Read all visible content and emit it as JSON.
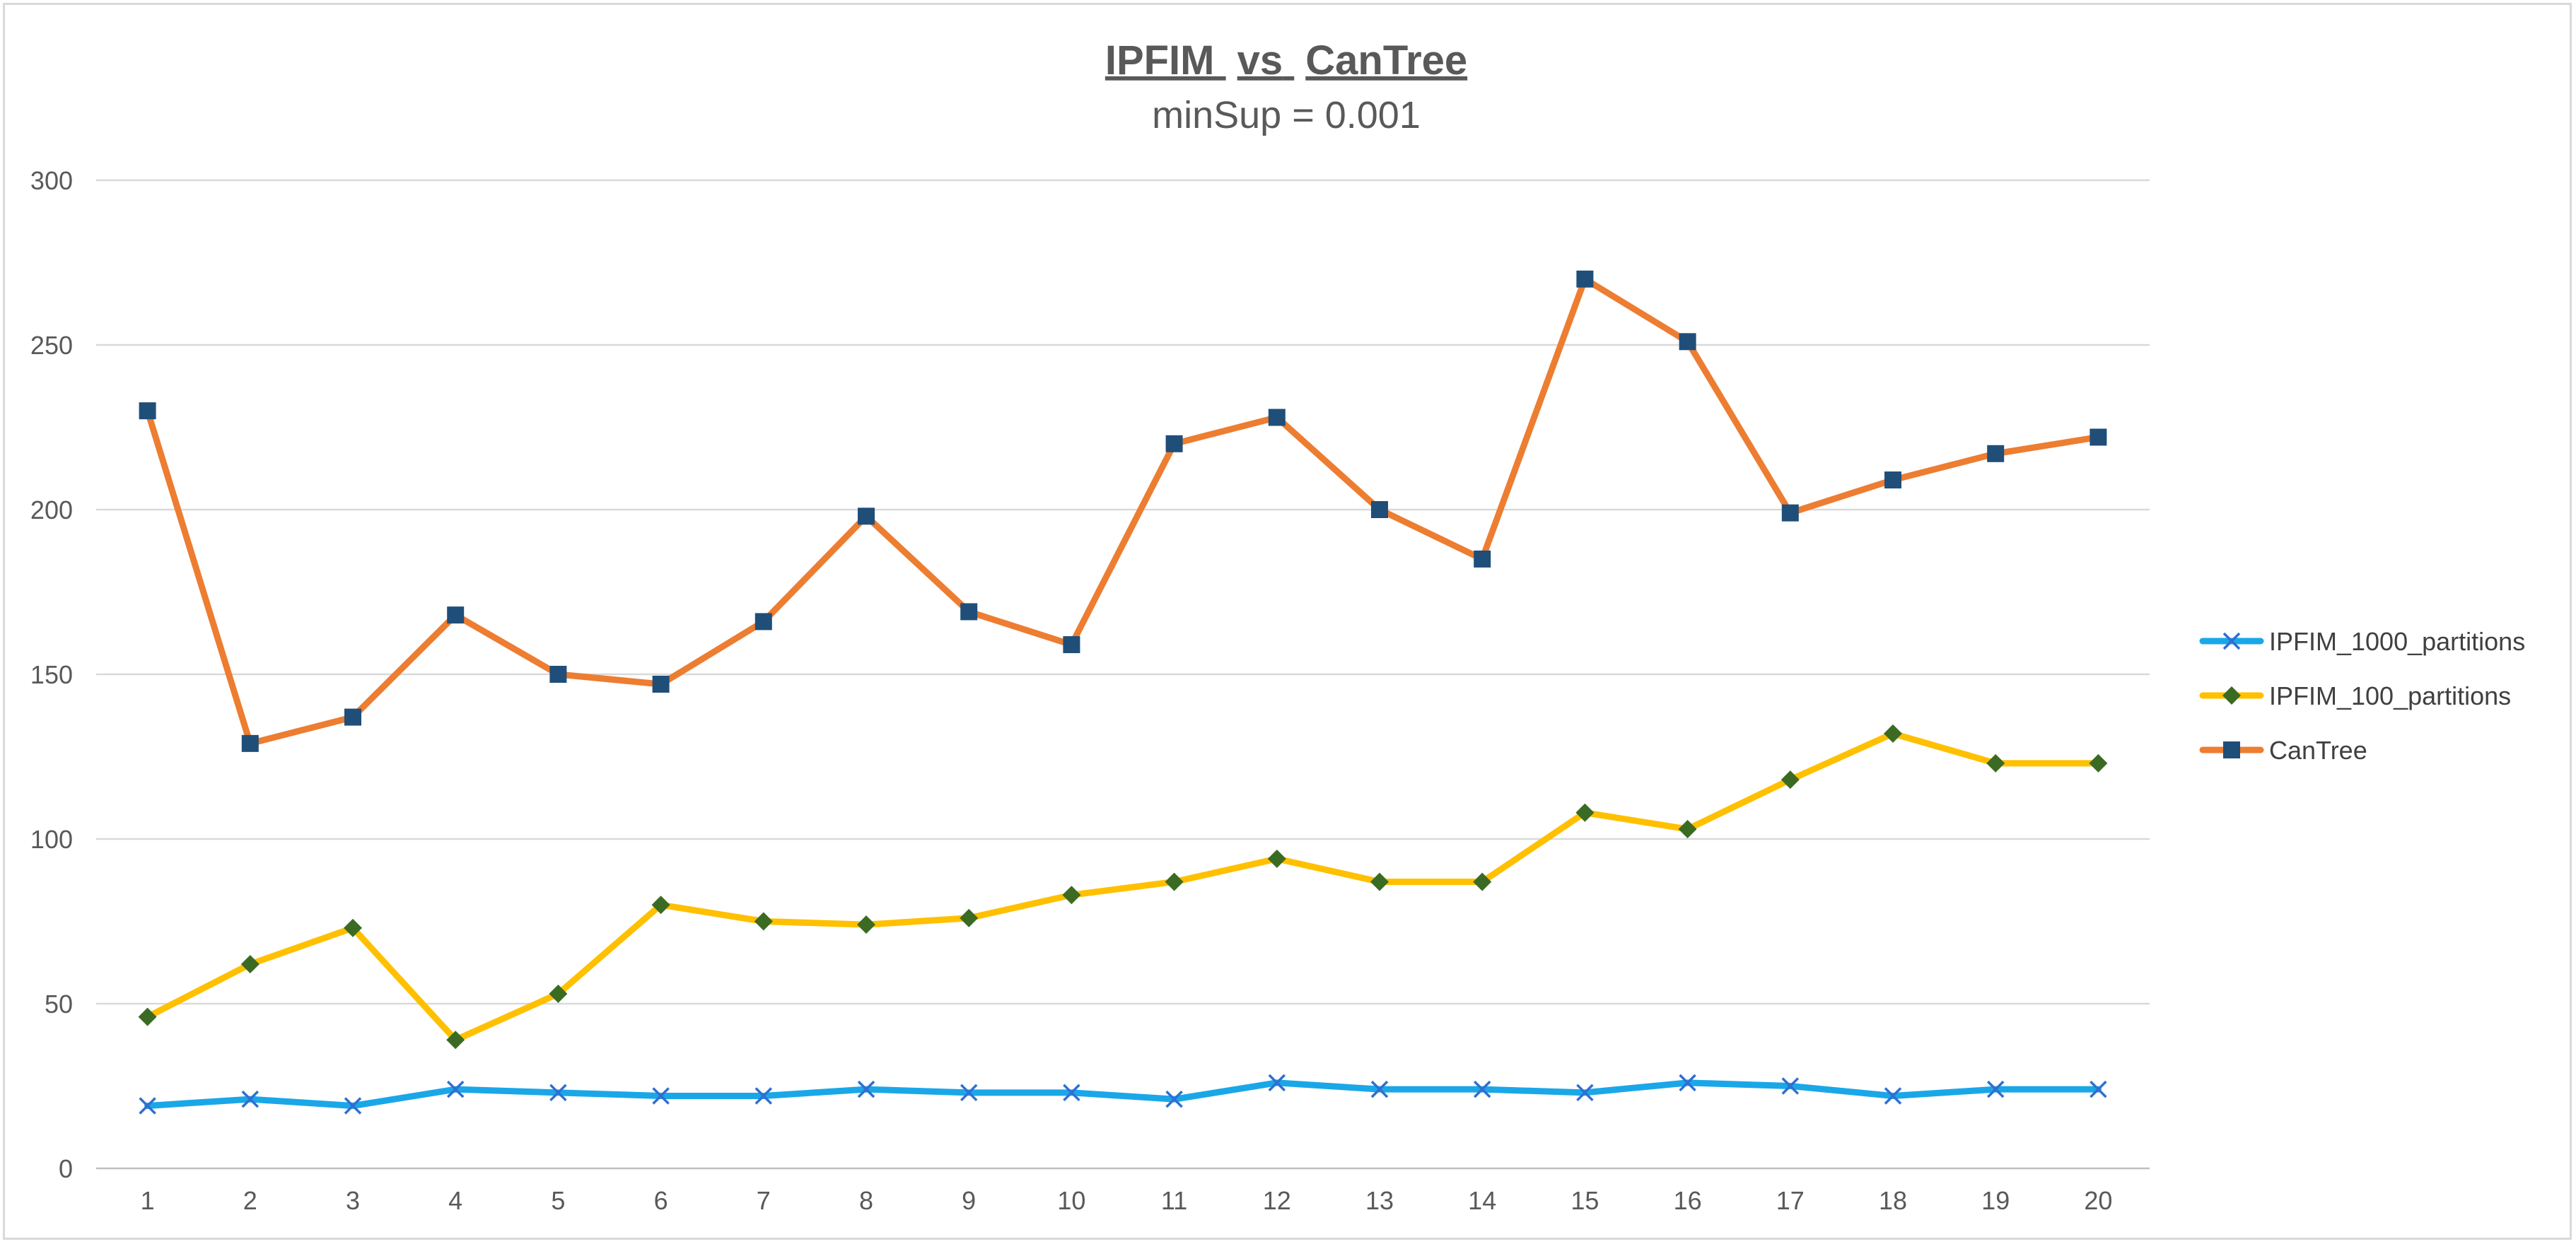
{
  "chart_data": {
    "type": "line",
    "title": "IPFIM vs CanTree",
    "title_parts": [
      "IPFIM",
      "vs",
      "CanTree"
    ],
    "subtitle": "minSup = 0.001",
    "xlabel": "",
    "ylabel": "",
    "x": [
      1,
      2,
      3,
      4,
      5,
      6,
      7,
      8,
      9,
      10,
      11,
      12,
      13,
      14,
      15,
      16,
      17,
      18,
      19,
      20
    ],
    "ylim": [
      0,
      300
    ],
    "yticks": [
      0,
      50,
      100,
      150,
      200,
      250,
      300
    ],
    "grid": true,
    "legend_position": "right",
    "series": [
      {
        "name": "IPFIM_1000_partitions",
        "color": "#1aa7e8",
        "marker": "x",
        "marker_color": "#2f6fd1",
        "values": [
          19,
          21,
          19,
          24,
          23,
          22,
          22,
          24,
          23,
          23,
          21,
          26,
          24,
          24,
          23,
          26,
          25,
          22,
          24,
          24
        ]
      },
      {
        "name": "IPFIM_100_partitions",
        "color": "#ffc000",
        "marker": "diamond",
        "marker_color": "#3b6b22",
        "values": [
          46,
          62,
          73,
          39,
          53,
          80,
          75,
          74,
          76,
          83,
          87,
          94,
          87,
          87,
          108,
          103,
          118,
          132,
          123,
          123
        ]
      },
      {
        "name": "CanTree",
        "color": "#ed7d31",
        "marker": "square",
        "marker_color": "#1f4e79",
        "values": [
          230,
          129,
          137,
          168,
          150,
          147,
          166,
          198,
          169,
          159,
          220,
          228,
          200,
          185,
          270,
          251,
          199,
          209,
          217,
          222
        ]
      }
    ]
  }
}
